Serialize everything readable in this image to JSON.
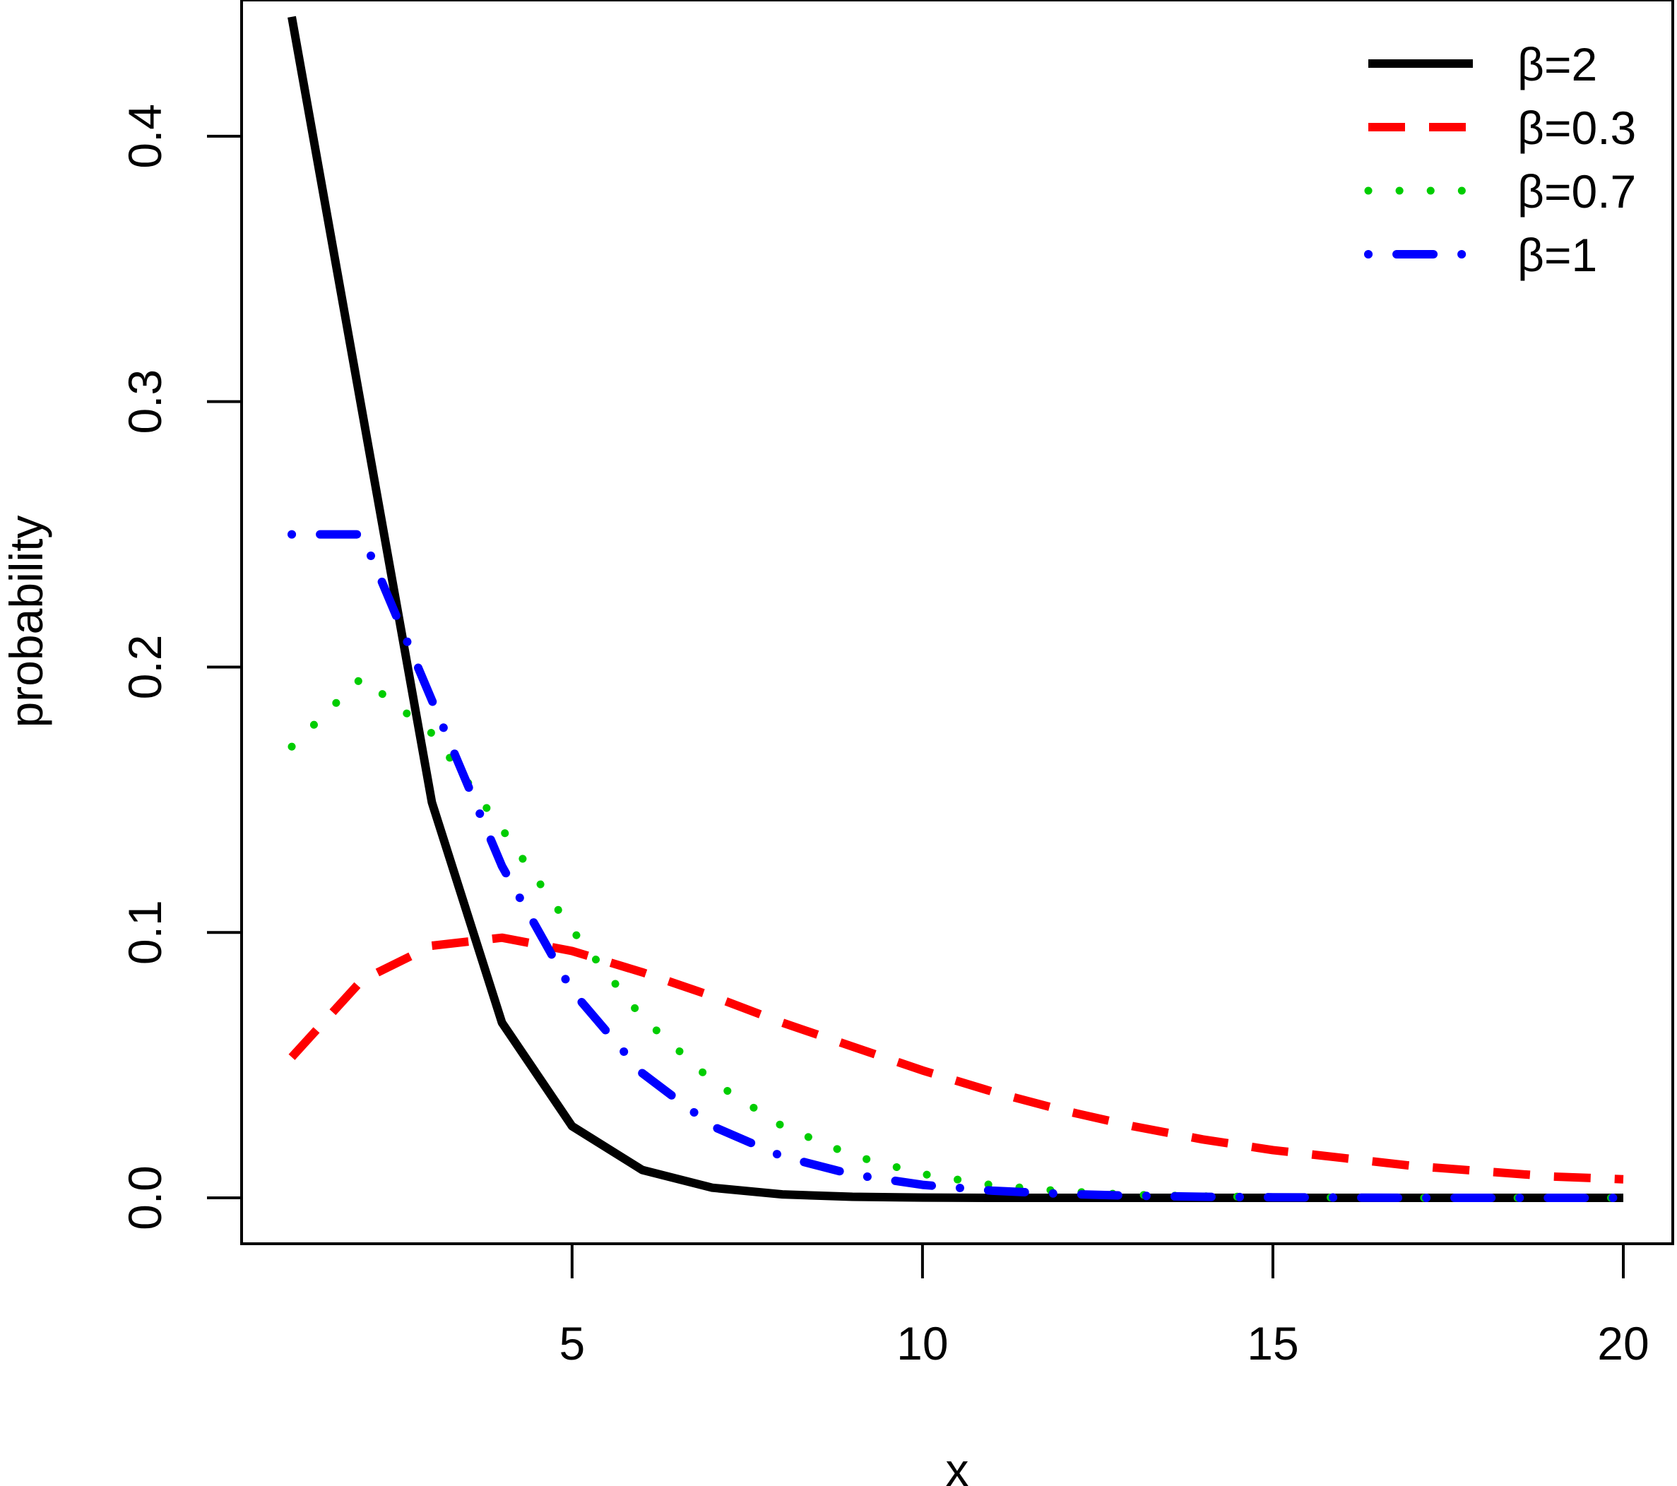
{
  "chart_data": {
    "type": "line",
    "title": "",
    "xlabel": "x",
    "ylabel": "probability",
    "xlim": [
      1,
      20
    ],
    "ylim": [
      0,
      0.45
    ],
    "x_ticks": [
      "5",
      "10",
      "15",
      "20"
    ],
    "y_ticks": [
      "0.0",
      "0.1",
      "0.2",
      "0.3",
      "0.4"
    ],
    "grid": false,
    "legend_position": "top-right",
    "x": [
      1,
      2,
      3,
      4,
      5,
      6,
      7,
      8,
      9,
      10,
      11,
      12,
      13,
      14,
      15,
      16,
      17,
      18,
      19,
      20
    ],
    "series": [
      {
        "name": "β=2",
        "color": "#000000",
        "style": "solid",
        "values": [
          0.445,
          0.297,
          0.149,
          0.066,
          0.027,
          0.0105,
          0.0038,
          0.0013,
          0.0004,
          0.0001,
          0,
          0,
          0,
          0,
          0,
          0,
          0,
          0,
          0,
          0
        ]
      },
      {
        "name": "β=0.3",
        "color": "#ff0000",
        "style": "dashed",
        "values": [
          0.053,
          0.082,
          0.095,
          0.098,
          0.093,
          0.085,
          0.076,
          0.066,
          0.057,
          0.048,
          0.04,
          0.033,
          0.027,
          0.022,
          0.018,
          0.015,
          0.012,
          0.01,
          0.008,
          0.007
        ]
      },
      {
        "name": "β=0.7",
        "color": "#00cd00",
        "style": "dotted",
        "values": [
          0.17,
          0.196,
          0.175,
          0.139,
          0.101,
          0.068,
          0.044,
          0.027,
          0.016,
          0.009,
          0.0048,
          0.0025,
          0.0012,
          0.0006,
          0.0003,
          0.0001,
          0,
          0,
          0,
          0
        ]
      },
      {
        "name": "β=1",
        "color": "#0000ff",
        "style": "dotdash",
        "values": [
          0.25,
          0.25,
          0.1875,
          0.125,
          0.078,
          0.047,
          0.027,
          0.0156,
          0.0088,
          0.0049,
          0.0027,
          0.0015,
          0.0008,
          0.0004,
          0.0002,
          0.0001,
          0,
          0,
          0,
          0
        ]
      }
    ]
  }
}
